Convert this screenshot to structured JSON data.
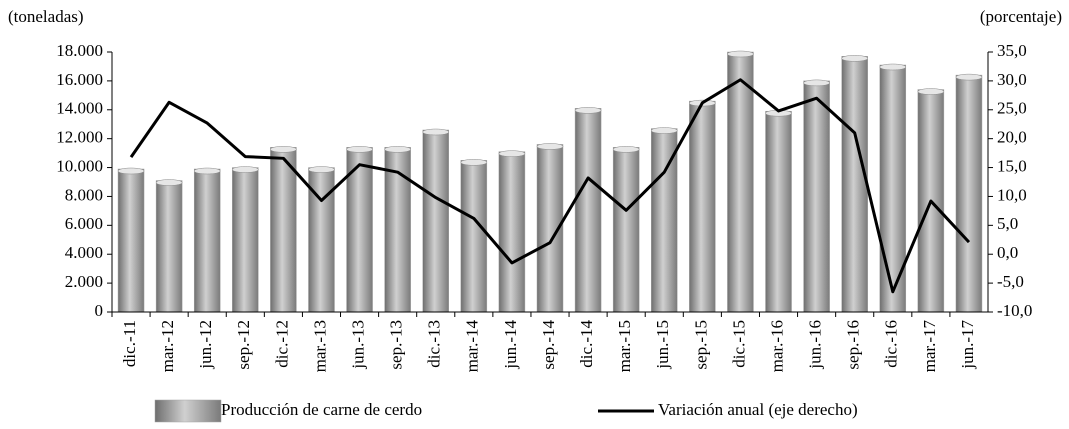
{
  "chart_data": {
    "type": "bar_line",
    "y_label": "(toneladas)",
    "y2_label": "(porcentaje)",
    "categories": [
      "dic.-11",
      "mar.-12",
      "jun.-12",
      "sep.-12",
      "dic.-12",
      "mar.-13",
      "jun.-13",
      "sep.-13",
      "dic.-13",
      "mar.-14",
      "jun.-14",
      "sep.-14",
      "dic.-14",
      "mar.-15",
      "jun.-15",
      "sep.-15",
      "dic.-15",
      "mar.-16",
      "jun.-16",
      "sep.-16",
      "dic.-16",
      "mar.-17",
      "jun.-17"
    ],
    "series": [
      {
        "name": "Producción de carne de cerdo",
        "type": "bar",
        "color": "#a6a6a6",
        "values": [
          9900,
          9100,
          9900,
          10000,
          11400,
          10000,
          11400,
          11400,
          12600,
          10500,
          11100,
          11600,
          14100,
          11400,
          12700,
          14600,
          18000,
          13900,
          16000,
          17700,
          17100,
          15400,
          16400
        ]
      },
      {
        "name": "Variación anual (eje derecho)",
        "type": "line",
        "axis": "y2",
        "color": "#000000",
        "values": [
          16.8,
          26.3,
          22.7,
          16.9,
          16.6,
          9.3,
          15.5,
          14.2,
          9.8,
          6.2,
          -1.5,
          2.0,
          13.2,
          7.6,
          14.2,
          26.2,
          30.2,
          24.8,
          27.0,
          21.0,
          -6.5,
          9.2,
          2.1
        ]
      }
    ],
    "ylim": [
      0,
      18000
    ],
    "yticks": [
      0,
      {
        "value": 2000,
        "label": "2.000"
      },
      {
        "value": 4000,
        "label": "4.000"
      },
      {
        "value": 6000,
        "label": "6.000"
      },
      {
        "value": 8000,
        "label": "8.000"
      },
      {
        "value": 10000,
        "label": "10.000"
      },
      {
        "value": 12000,
        "label": "12.000"
      },
      {
        "value": 14000,
        "label": "14.000"
      },
      {
        "value": 16000,
        "label": "16.000"
      },
      {
        "value": 18000,
        "label": "18.000"
      }
    ],
    "y2lim": [
      -10,
      35
    ],
    "y2ticks": [
      {
        "value": -10,
        "label": "-10,0"
      },
      {
        "value": -5,
        "label": "-5,0"
      },
      {
        "value": 0,
        "label": "0,0"
      },
      {
        "value": 5,
        "label": "5,0"
      },
      {
        "value": 10,
        "label": "10,0"
      },
      {
        "value": 15,
        "label": "15,0"
      },
      {
        "value": 20,
        "label": "20,0"
      },
      {
        "value": 25,
        "label": "25,0"
      },
      {
        "value": 30,
        "label": "30,0"
      },
      {
        "value": 35,
        "label": "35,0"
      }
    ],
    "grid": false,
    "legend": "bottom"
  }
}
